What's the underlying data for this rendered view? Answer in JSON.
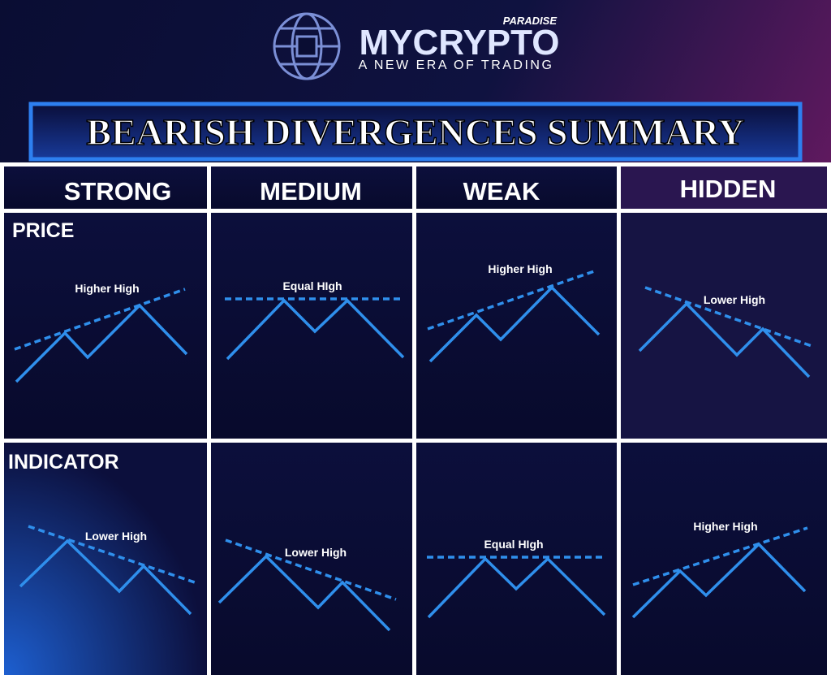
{
  "header": {
    "brand": "MYCRYPTO",
    "brand_suffix": "PARADISE",
    "tagline": "A NEW ERA OF TRADING"
  },
  "title": "BEARISH DIVERGENCES SUMMARY",
  "columns": [
    "STRONG",
    "MEDIUM",
    "WEAK",
    "HIDDEN"
  ],
  "rows": [
    {
      "label": "PRICE",
      "cells": [
        "Higher High",
        "Equal HIgh",
        "Higher High",
        "Lower High"
      ]
    },
    {
      "label": "INDICATOR",
      "cells": [
        "Lower High",
        "Lower High",
        "Equal HIgh",
        "Higher High"
      ]
    }
  ]
}
